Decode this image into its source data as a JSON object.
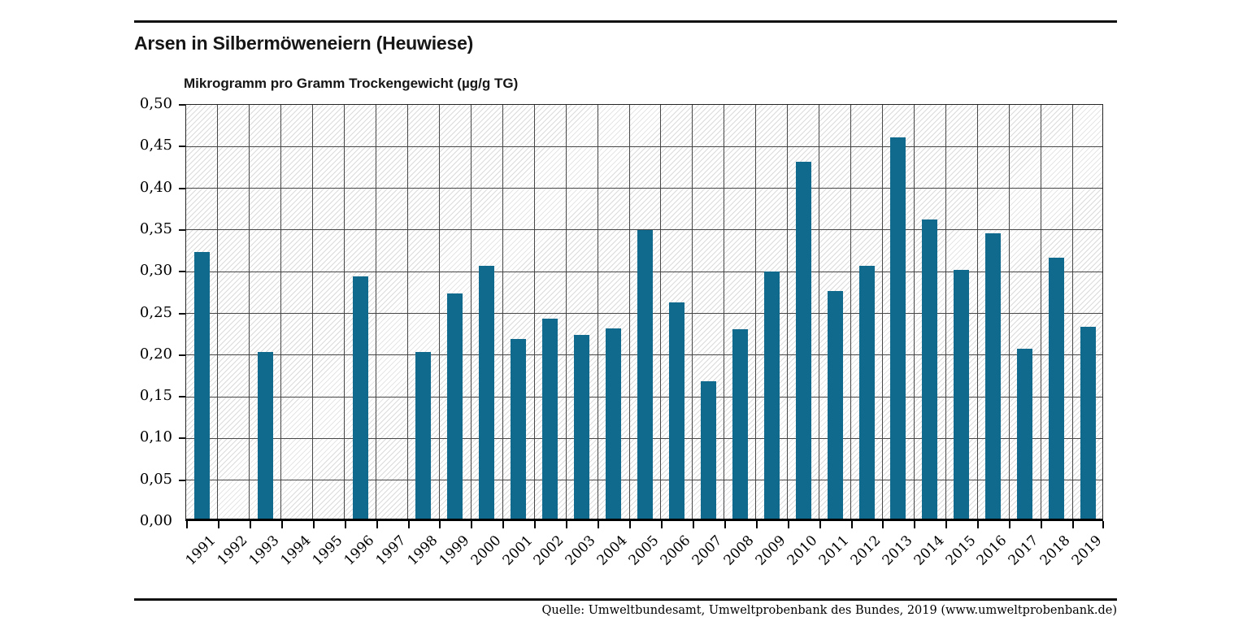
{
  "header": {
    "title": "Arsen in Silbermöweneiern (Heuwiese)"
  },
  "footer": {
    "source": "Quelle: Umweltbundesamt, Umweltprobenbank des Bundes, 2019 (www.umweltprobenbank.de)"
  },
  "chart_data": {
    "type": "bar",
    "title": "Arsen in Silbermöweneiern (Heuwiese)",
    "ylabel": "Mikrogramm pro Gramm Trockengewicht (µg/g TG)",
    "xlabel": "",
    "categories": [
      "1991",
      "1992",
      "1993",
      "1994",
      "1995",
      "1996",
      "1997",
      "1998",
      "1999",
      "2000",
      "2001",
      "2002",
      "2003",
      "2004",
      "2005",
      "2006",
      "2007",
      "2008",
      "2009",
      "2010",
      "2011",
      "2012",
      "2013",
      "2014",
      "2015",
      "2016",
      "2017",
      "2018",
      "2019"
    ],
    "values": [
      0.32,
      null,
      0.2,
      null,
      null,
      0.29,
      null,
      0.2,
      0.27,
      0.303,
      0.215,
      0.24,
      0.22,
      0.228,
      0.346,
      0.259,
      0.165,
      0.227,
      0.296,
      0.428,
      0.273,
      0.303,
      0.457,
      0.359,
      0.298,
      0.342,
      0.204,
      0.313,
      0.23
    ],
    "ylim": [
      0,
      0.5
    ],
    "ytick_step": 0.05,
    "ytick_labels": [
      "0,00",
      "0,05",
      "0,10",
      "0,15",
      "0,20",
      "0,25",
      "0,30",
      "0,35",
      "0,40",
      "0,45",
      "0,50"
    ],
    "grid": true,
    "hatch_background": true,
    "legend": "none",
    "bar_color": "#106a8e",
    "gridline_color": "#474747",
    "decimal_separator": ","
  }
}
